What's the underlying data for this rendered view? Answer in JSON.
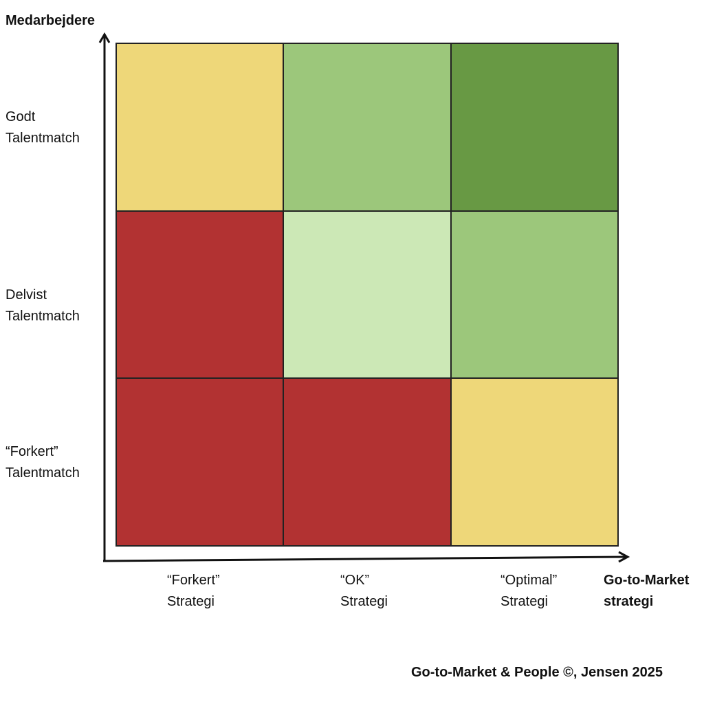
{
  "y_axis_title": "Medarbejdere",
  "x_axis_title": {
    "line1": "Go-to-Market",
    "line2": "strategi"
  },
  "rows": [
    {
      "line1": "Godt",
      "line2": "Talentmatch"
    },
    {
      "line1": "Delvist",
      "line2": "Talentmatch"
    },
    {
      "line1": "“Forkert”",
      "line2": "Talentmatch"
    }
  ],
  "columns": [
    {
      "line1": "“Forkert”",
      "line2": "Strategi"
    },
    {
      "line1": "“OK”",
      "line2": "Strategi"
    },
    {
      "line1": "“Optimal”",
      "line2": "Strategi"
    }
  ],
  "matrix_colors": [
    [
      "#EED779",
      "#9CC77B",
      "#689944"
    ],
    [
      "#B23232",
      "#CCE8B6",
      "#9CC77B"
    ],
    [
      "#B23232",
      "#B23232",
      "#EED779"
    ]
  ],
  "footer": "Go-to-Market & People ©, Jensen 2025"
}
